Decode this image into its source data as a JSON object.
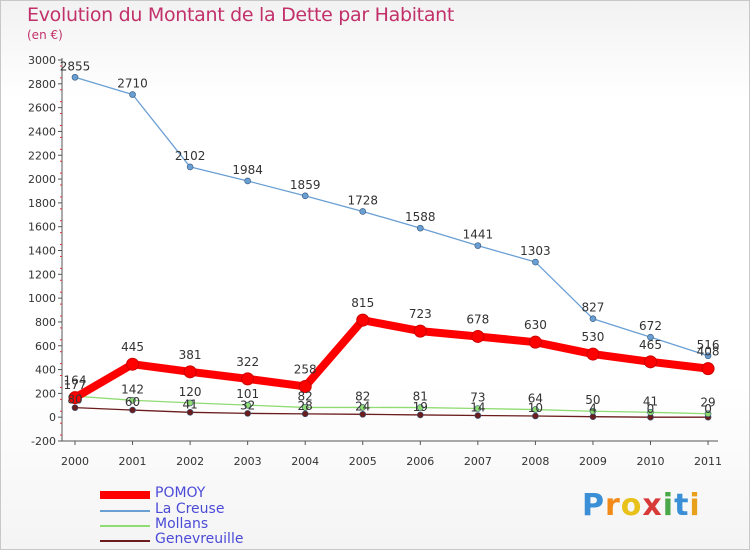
{
  "chart_data": {
    "type": "line",
    "title": "Evolution du Montant de la Dette par Habitant",
    "subtitle": "(en €)",
    "categories": [
      "2000",
      "2001",
      "2002",
      "2003",
      "2004",
      "2005",
      "2006",
      "2007",
      "2008",
      "2009",
      "2010",
      "2011"
    ],
    "ylim": [
      -200,
      3000
    ],
    "y_ticks": [
      -200,
      0,
      200,
      400,
      600,
      800,
      1000,
      1200,
      1400,
      1600,
      1800,
      2000,
      2200,
      2400,
      2600,
      2800,
      3000
    ],
    "grid": false,
    "series": [
      {
        "name": "POMOY",
        "color": "#ff0000",
        "values": [
          164,
          445,
          381,
          322,
          258,
          815,
          723,
          678,
          630,
          530,
          465,
          408
        ]
      },
      {
        "name": "La Creuse",
        "color": "#6a9fd4",
        "values": [
          2855,
          2710,
          2102,
          1984,
          1859,
          1728,
          1588,
          1441,
          1303,
          827,
          672,
          516
        ]
      },
      {
        "name": "Mollans",
        "color": "#8fdc72",
        "values": [
          177,
          142,
          120,
          101,
          82,
          82,
          81,
          73,
          64,
          50,
          41,
          29
        ]
      },
      {
        "name": "Genevreuille",
        "color": "#6b1c1c",
        "values": [
          80,
          60,
          41,
          32,
          28,
          24,
          19,
          14,
          10,
          4,
          0,
          0
        ]
      }
    ]
  },
  "brand": {
    "letters": [
      "P",
      "r",
      "o",
      "x",
      "i",
      "t",
      "i"
    ],
    "colors": [
      "#3a8fd6",
      "#f28a1a",
      "#e8c21a",
      "#d83a3a",
      "#4aa84a",
      "#3a8fd6",
      "#e8a01a"
    ]
  }
}
